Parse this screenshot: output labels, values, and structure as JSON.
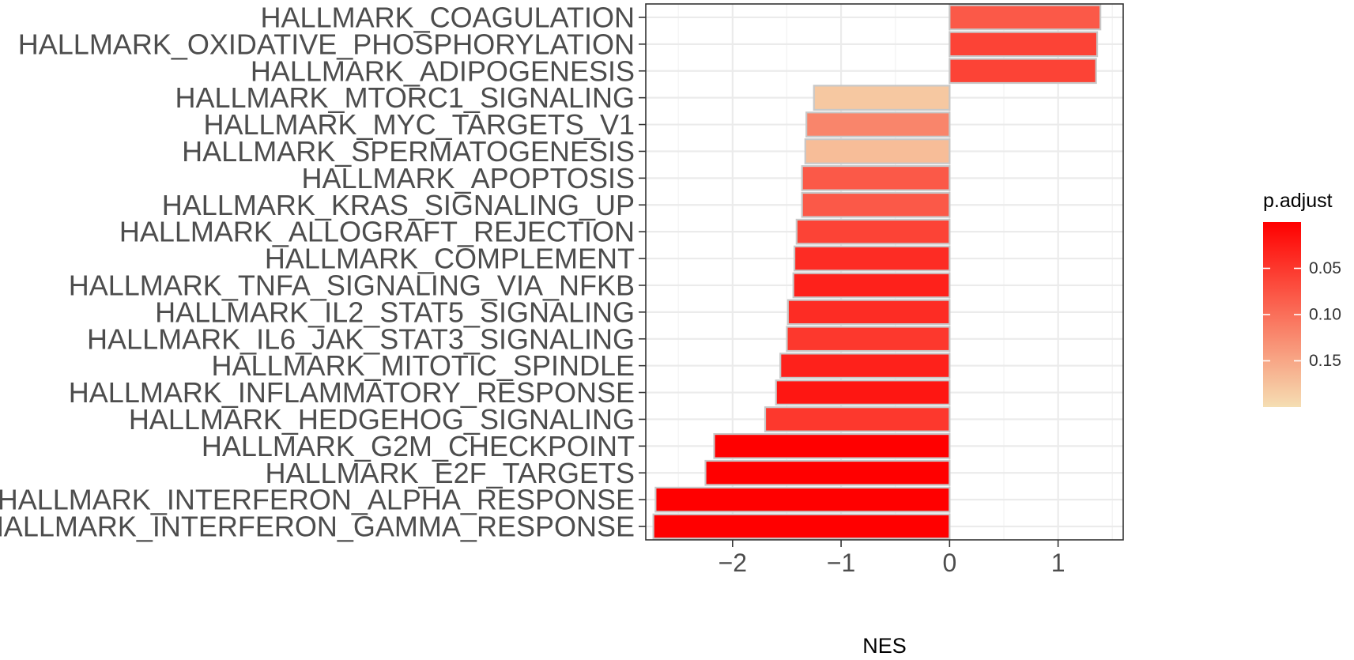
{
  "chart_data": {
    "type": "bar",
    "orientation": "horizontal",
    "xlabel": "NES",
    "ylabel": "",
    "xlim": [
      -2.8,
      1.6
    ],
    "x_ticks": [
      -2,
      -1,
      0,
      1
    ],
    "x_tick_labels": [
      "−2",
      "−1",
      "0",
      "1"
    ],
    "grid": true,
    "categories": [
      "HALLMARK_COAGULATION",
      "HALLMARK_OXIDATIVE_PHOSPHORYLATION",
      "HALLMARK_ADIPOGENESIS",
      "HALLMARK_MTORC1_SIGNALING",
      "HALLMARK_MYC_TARGETS_V1",
      "HALLMARK_SPERMATOGENESIS",
      "HALLMARK_APOPTOSIS",
      "HALLMARK_KRAS_SIGNALING_UP",
      "HALLMARK_ALLOGRAFT_REJECTION",
      "HALLMARK_COMPLEMENT",
      "HALLMARK_TNFA_SIGNALING_VIA_NFKB",
      "HALLMARK_IL2_STAT5_SIGNALING",
      "HALLMARK_IL6_JAK_STAT3_SIGNALING",
      "HALLMARK_MITOTIC_SPINDLE",
      "HALLMARK_INFLAMMATORY_RESPONSE",
      "HALLMARK_HEDGEHOG_SIGNALING",
      "HALLMARK_G2M_CHECKPOINT",
      "HALLMARK_E2F_TARGETS",
      "HALLMARK_INTERFERON_ALPHA_RESPONSE",
      "HALLMARK_INTERFERON_GAMMA_RESPONSE"
    ],
    "values": [
      1.39,
      1.36,
      1.35,
      -1.25,
      -1.32,
      -1.33,
      -1.36,
      -1.36,
      -1.41,
      -1.43,
      -1.44,
      -1.49,
      -1.5,
      -1.56,
      -1.6,
      -1.7,
      -2.17,
      -2.25,
      -2.71,
      -2.73
    ],
    "p_adjust": [
      0.08,
      0.06,
      0.06,
      0.18,
      0.12,
      0.17,
      0.08,
      0.08,
      0.06,
      0.04,
      0.03,
      0.04,
      0.05,
      0.03,
      0.02,
      0.05,
      0.0,
      0.0,
      0.0,
      0.0
    ],
    "bar_outline_color": "#c8c8c8",
    "legend": {
      "title": "p.adjust",
      "placement": "right",
      "range": [
        0.0,
        0.2
      ],
      "breaks": [
        0.05,
        0.1,
        0.15
      ],
      "break_labels": [
        "0.05",
        "0.10",
        "0.15"
      ],
      "color_low": "#ff0000",
      "color_high": "#f5deb3"
    }
  }
}
